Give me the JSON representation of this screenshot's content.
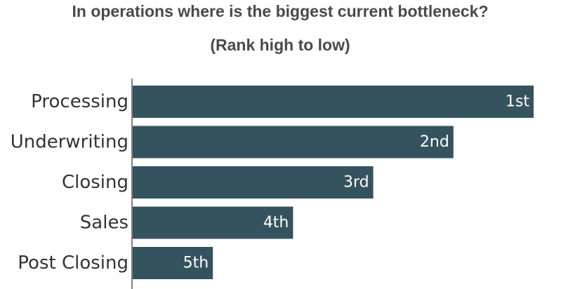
{
  "chart_data": {
    "type": "bar",
    "orientation": "horizontal",
    "title": "In operations where is the biggest current bottleneck?",
    "subtitle": "(Rank high to low)",
    "categories": [
      "Processing",
      "Underwriting",
      "Closing",
      "Sales",
      "Post Closing"
    ],
    "values": [
      5,
      4,
      3,
      2,
      1
    ],
    "data_labels": [
      "1st",
      "2nd",
      "3rd",
      "4th",
      "5th"
    ],
    "xlim": [
      0,
      5
    ],
    "grid": false,
    "legend": "none",
    "bar_color": "#35535f",
    "axis_color": "#555555"
  }
}
